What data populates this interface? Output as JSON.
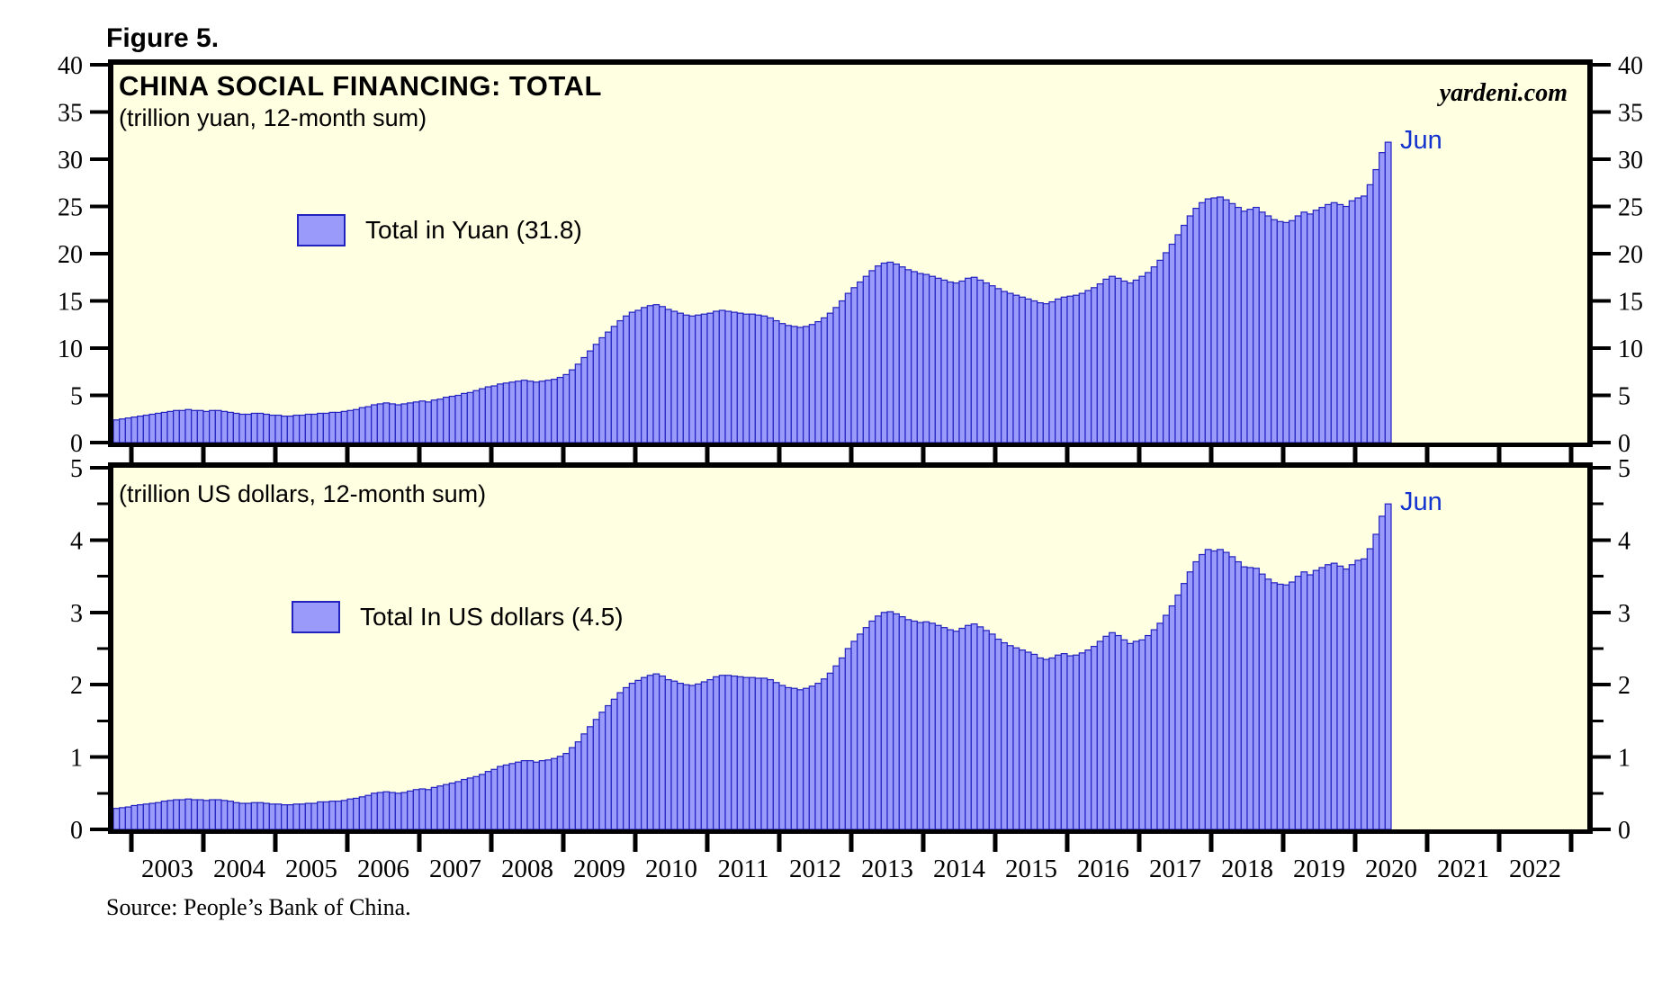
{
  "figure_label": "Figure 5.",
  "branding": "yardeni.com",
  "source_note": "Source: People’s Bank of China.",
  "top_panel": {
    "title": "CHINA SOCIAL FINANCING: TOTAL",
    "subtitle": "(trillion yuan, 12-month sum)",
    "legend_label": "Total in Yuan (31.8)",
    "annotation": "Jun",
    "latest_value": 31.8,
    "ylim": [
      0,
      40
    ],
    "yticks": [
      0,
      5,
      10,
      15,
      20,
      25,
      30,
      35,
      40
    ]
  },
  "bottom_panel": {
    "subtitle": "(trillion US dollars, 12-month sum)",
    "legend_label": "Total In US dollars (4.5)",
    "annotation": "Jun",
    "latest_value": 4.5,
    "ylim": [
      0,
      5
    ],
    "yticks": [
      0,
      1,
      2,
      3,
      4,
      5
    ],
    "yticks_minor": [
      0.5,
      1.5,
      2.5,
      3.5,
      4.5
    ]
  },
  "x_years": [
    2003,
    2004,
    2005,
    2006,
    2007,
    2008,
    2009,
    2010,
    2011,
    2012,
    2013,
    2014,
    2015,
    2016,
    2017,
    2018,
    2019,
    2020,
    2021,
    2022
  ],
  "colors": {
    "plot_bg": "#ffffe1",
    "bar_fill": "#9a9afa",
    "bar_stroke": "#2222c0",
    "frame": "#000000",
    "annotation_blue": "#1333cf"
  },
  "chart_data": [
    {
      "type": "bar",
      "name": "Total in Yuan",
      "units": "trillion yuan, 12-month sum",
      "x_monthly_start": "2002-10",
      "x_monthly_end": "2020-06",
      "ylim": [
        0,
        40
      ],
      "values": [
        2.4,
        2.5,
        2.6,
        2.7,
        2.8,
        2.9,
        3.0,
        3.1,
        3.2,
        3.3,
        3.4,
        3.4,
        3.5,
        3.4,
        3.4,
        3.3,
        3.4,
        3.4,
        3.3,
        3.2,
        3.1,
        3.0,
        3.0,
        3.1,
        3.1,
        3.0,
        2.9,
        2.9,
        2.8,
        2.8,
        2.9,
        2.9,
        3.0,
        3.0,
        3.1,
        3.1,
        3.2,
        3.2,
        3.3,
        3.4,
        3.5,
        3.7,
        3.8,
        4.0,
        4.1,
        4.2,
        4.1,
        4.0,
        4.1,
        4.2,
        4.3,
        4.4,
        4.3,
        4.5,
        4.6,
        4.8,
        4.9,
        5.0,
        5.2,
        5.3,
        5.5,
        5.7,
        5.9,
        6.0,
        6.2,
        6.3,
        6.4,
        6.5,
        6.6,
        6.5,
        6.4,
        6.5,
        6.6,
        6.7,
        6.9,
        7.2,
        7.7,
        8.3,
        9.0,
        9.7,
        10.4,
        11.1,
        11.7,
        12.3,
        12.9,
        13.4,
        13.8,
        14.0,
        14.3,
        14.5,
        14.6,
        14.4,
        14.1,
        13.9,
        13.7,
        13.5,
        13.4,
        13.5,
        13.6,
        13.7,
        13.9,
        14.0,
        13.9,
        13.8,
        13.7,
        13.6,
        13.6,
        13.5,
        13.4,
        13.2,
        12.9,
        12.6,
        12.4,
        12.3,
        12.2,
        12.3,
        12.5,
        12.8,
        13.2,
        13.7,
        14.3,
        15.0,
        15.8,
        16.4,
        17.0,
        17.6,
        18.2,
        18.7,
        19.0,
        19.1,
        18.9,
        18.6,
        18.3,
        18.1,
        17.9,
        17.8,
        17.6,
        17.4,
        17.2,
        17.0,
        16.9,
        17.1,
        17.4,
        17.5,
        17.2,
        16.9,
        16.6,
        16.3,
        16.0,
        15.8,
        15.6,
        15.4,
        15.2,
        15.0,
        14.8,
        14.7,
        14.9,
        15.2,
        15.4,
        15.5,
        15.6,
        15.8,
        16.1,
        16.4,
        16.8,
        17.3,
        17.6,
        17.4,
        17.1,
        16.9,
        17.2,
        17.6,
        18.0,
        18.6,
        19.3,
        20.1,
        21.0,
        22.0,
        23.0,
        24.0,
        24.8,
        25.4,
        25.8,
        25.9,
        26.0,
        25.7,
        25.3,
        24.9,
        24.5,
        24.7,
        24.9,
        24.4,
        24.0,
        23.6,
        23.4,
        23.3,
        23.5,
        24.0,
        24.4,
        24.2,
        24.6,
        24.9,
        25.2,
        25.4,
        25.2,
        25.0,
        25.6,
        25.9,
        26.1,
        27.3,
        28.9,
        30.7,
        31.8
      ]
    },
    {
      "type": "bar",
      "name": "Total In US dollars",
      "units": "trillion US dollars, 12-month sum",
      "x_monthly_start": "2002-10",
      "x_monthly_end": "2020-06",
      "ylim": [
        0,
        5
      ],
      "values": [
        0.29,
        0.3,
        0.31,
        0.33,
        0.34,
        0.35,
        0.36,
        0.37,
        0.39,
        0.4,
        0.41,
        0.41,
        0.42,
        0.41,
        0.41,
        0.4,
        0.41,
        0.41,
        0.4,
        0.39,
        0.37,
        0.36,
        0.36,
        0.37,
        0.37,
        0.36,
        0.35,
        0.35,
        0.34,
        0.34,
        0.35,
        0.35,
        0.36,
        0.36,
        0.38,
        0.38,
        0.39,
        0.39,
        0.4,
        0.42,
        0.43,
        0.45,
        0.47,
        0.5,
        0.51,
        0.52,
        0.51,
        0.5,
        0.51,
        0.53,
        0.55,
        0.56,
        0.55,
        0.58,
        0.6,
        0.62,
        0.64,
        0.66,
        0.69,
        0.71,
        0.73,
        0.76,
        0.8,
        0.83,
        0.87,
        0.89,
        0.91,
        0.93,
        0.95,
        0.95,
        0.93,
        0.95,
        0.96,
        0.98,
        1.01,
        1.05,
        1.13,
        1.21,
        1.32,
        1.42,
        1.52,
        1.62,
        1.71,
        1.8,
        1.89,
        1.96,
        2.02,
        2.06,
        2.1,
        2.13,
        2.15,
        2.12,
        2.07,
        2.05,
        2.02,
        2.0,
        1.99,
        2.01,
        2.04,
        2.07,
        2.11,
        2.13,
        2.13,
        2.12,
        2.11,
        2.1,
        2.1,
        2.09,
        2.09,
        2.07,
        2.03,
        1.99,
        1.96,
        1.95,
        1.93,
        1.95,
        1.98,
        2.02,
        2.08,
        2.16,
        2.26,
        2.37,
        2.5,
        2.6,
        2.7,
        2.79,
        2.88,
        2.95,
        3.0,
        3.01,
        2.98,
        2.94,
        2.9,
        2.88,
        2.86,
        2.87,
        2.85,
        2.82,
        2.79,
        2.76,
        2.74,
        2.78,
        2.82,
        2.84,
        2.8,
        2.75,
        2.7,
        2.63,
        2.58,
        2.54,
        2.51,
        2.48,
        2.45,
        2.42,
        2.37,
        2.35,
        2.37,
        2.41,
        2.43,
        2.4,
        2.41,
        2.44,
        2.48,
        2.53,
        2.6,
        2.67,
        2.72,
        2.68,
        2.62,
        2.57,
        2.6,
        2.62,
        2.68,
        2.76,
        2.85,
        2.96,
        3.09,
        3.24,
        3.4,
        3.56,
        3.7,
        3.8,
        3.87,
        3.85,
        3.87,
        3.83,
        3.77,
        3.7,
        3.63,
        3.62,
        3.61,
        3.53,
        3.46,
        3.41,
        3.39,
        3.38,
        3.42,
        3.5,
        3.56,
        3.52,
        3.58,
        3.62,
        3.66,
        3.68,
        3.64,
        3.6,
        3.66,
        3.72,
        3.74,
        3.88,
        4.08,
        4.33,
        4.5
      ]
    }
  ]
}
